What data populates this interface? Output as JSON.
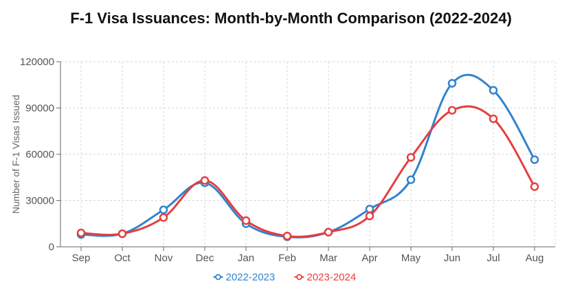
{
  "chart_data": {
    "type": "line",
    "title": "F-1 Visa Issuances: Month-by-Month Comparison (2022-2024)",
    "xlabel": "",
    "ylabel": "Number of F-1 Visas Issued",
    "categories": [
      "Sep",
      "Oct",
      "Nov",
      "Dec",
      "Jan",
      "Feb",
      "Mar",
      "Apr",
      "May",
      "Jun",
      "Jul",
      "Aug"
    ],
    "ylim": [
      0,
      120000
    ],
    "yticks": [
      "0",
      "30000",
      "60000",
      "90000",
      "120000"
    ],
    "grid": true,
    "legend_position": "bottom",
    "series": [
      {
        "name": "2022-2023",
        "color": "#3182ce",
        "values": [
          8000,
          8500,
          24000,
          41500,
          15000,
          6500,
          9500,
          24500,
          43500,
          106000,
          101500,
          56500
        ]
      },
      {
        "name": "2023-2024",
        "color": "#e53e3e",
        "values": [
          9000,
          8500,
          19000,
          43000,
          17000,
          7000,
          9500,
          20000,
          58000,
          88500,
          83000,
          39000
        ]
      }
    ]
  }
}
